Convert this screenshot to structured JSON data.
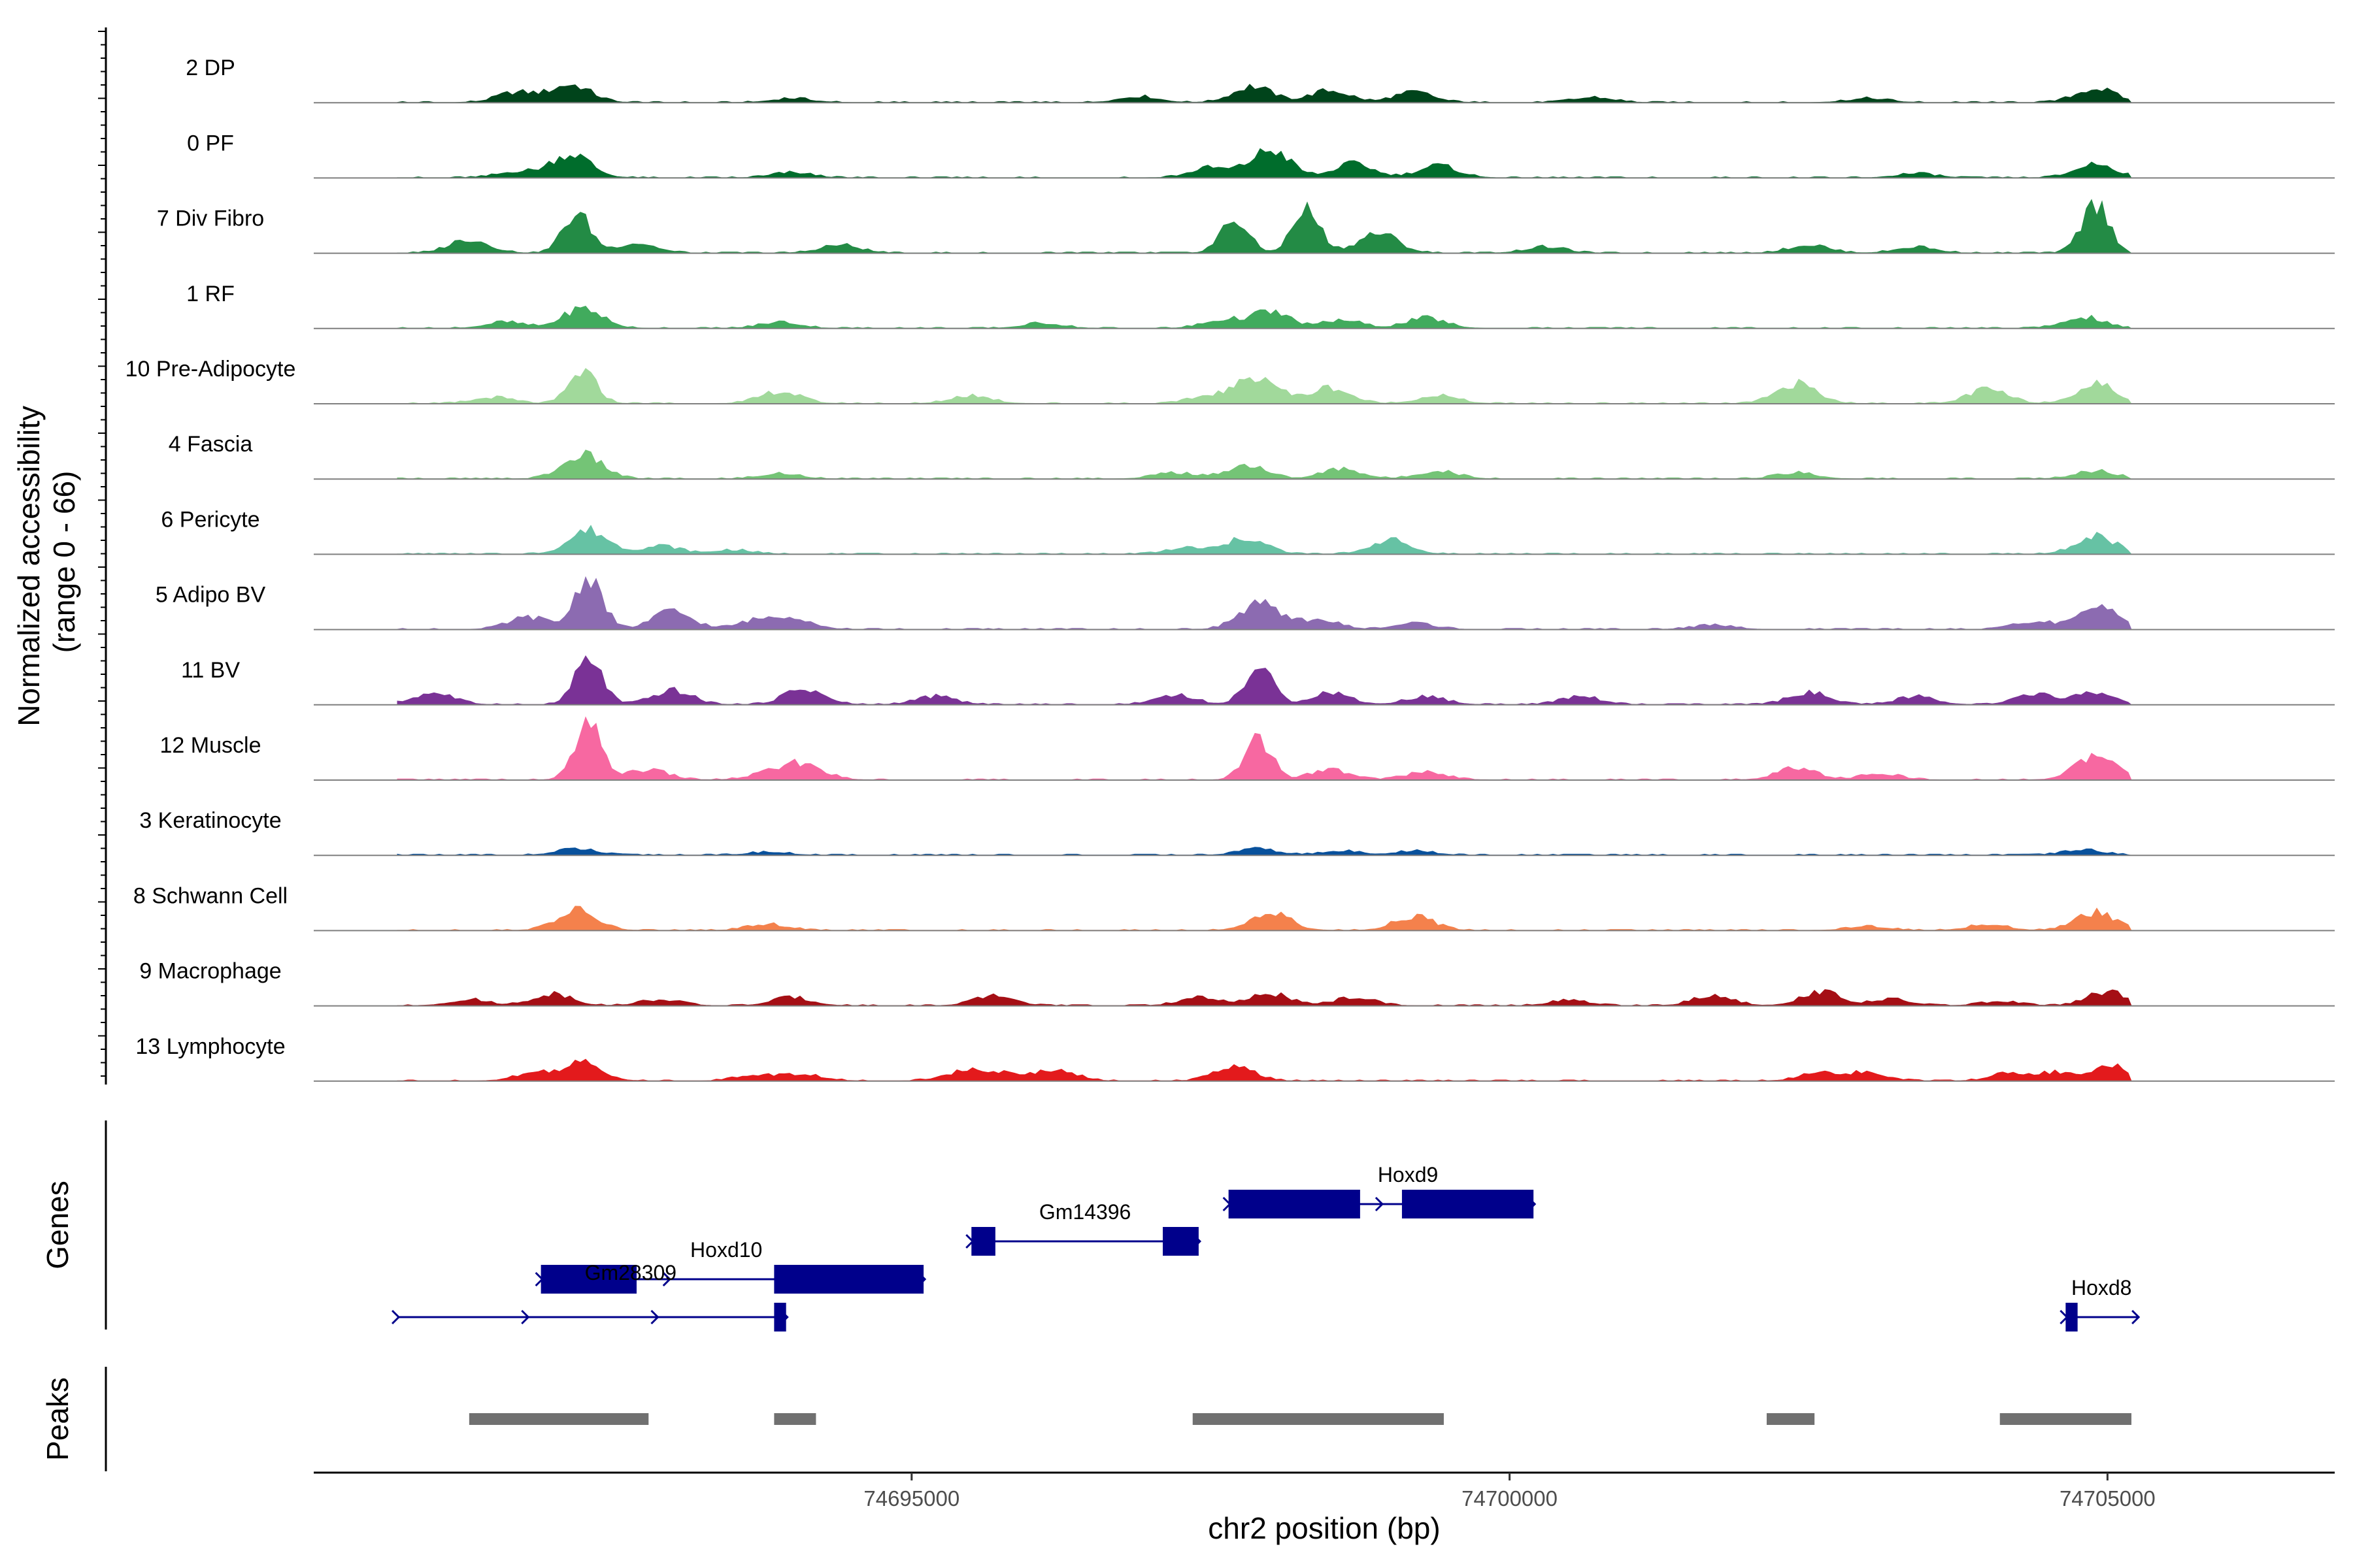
{
  "chart_data": {
    "type": "area",
    "title": "",
    "ylabel": "Normalized accessibility\n(range 0 - 66)",
    "y_range": [
      0,
      66
    ],
    "xlabel": "chr2 position (bp)",
    "x_range": [
      74690000,
      74706900
    ],
    "x_ticks": [
      74695000,
      74700000,
      74705000
    ],
    "x_tick_labels": [
      "74695000",
      "74700000",
      "74705000"
    ],
    "track_titles": {
      "genes": "Genes",
      "peaks": "Peaks"
    },
    "series": [
      {
        "name": "2 DP",
        "color": "#00441b",
        "peaks": [
          [
            74691700,
            10
          ],
          [
            74692150,
            18
          ],
          [
            74694000,
            4
          ],
          [
            74696900,
            6
          ],
          [
            74697850,
            16
          ],
          [
            74698500,
            12
          ],
          [
            74699200,
            10
          ],
          [
            74700700,
            5
          ],
          [
            74703000,
            4
          ],
          [
            74704900,
            14
          ]
        ]
      },
      {
        "name": "0 PF",
        "color": "#006d2c",
        "peaks": [
          [
            74691700,
            6
          ],
          [
            74692150,
            24
          ],
          [
            74694000,
            5
          ],
          [
            74697500,
            10
          ],
          [
            74698000,
            28
          ],
          [
            74698700,
            14
          ],
          [
            74699400,
            12
          ],
          [
            74703400,
            4
          ],
          [
            74704900,
            14
          ]
        ]
      },
      {
        "name": "7 Div Fibro",
        "color": "#238b45",
        "peaks": [
          [
            74691300,
            14
          ],
          [
            74692200,
            40
          ],
          [
            74692700,
            10
          ],
          [
            74694400,
            8
          ],
          [
            74697700,
            34
          ],
          [
            74698300,
            44
          ],
          [
            74698900,
            20
          ],
          [
            74700300,
            6
          ],
          [
            74702500,
            8
          ],
          [
            74703400,
            6
          ],
          [
            74704900,
            50
          ]
        ]
      },
      {
        "name": "1 RF",
        "color": "#41ab5d",
        "peaks": [
          [
            74691600,
            6
          ],
          [
            74692250,
            20
          ],
          [
            74693900,
            6
          ],
          [
            74696100,
            5
          ],
          [
            74697600,
            8
          ],
          [
            74698000,
            16
          ],
          [
            74698600,
            8
          ],
          [
            74699300,
            10
          ],
          [
            74704800,
            11
          ]
        ]
      },
      {
        "name": "10 Pre-Adipocyte",
        "color": "#a1d99b",
        "peaks": [
          [
            74691500,
            6
          ],
          [
            74692250,
            32
          ],
          [
            74693900,
            12
          ],
          [
            74695500,
            8
          ],
          [
            74697500,
            8
          ],
          [
            74697900,
            28
          ],
          [
            74698500,
            16
          ],
          [
            74699400,
            8
          ],
          [
            74702400,
            20
          ],
          [
            74704000,
            14
          ],
          [
            74704900,
            20
          ]
        ]
      },
      {
        "name": "4 Fascia",
        "color": "#74c476",
        "peaks": [
          [
            74692250,
            24
          ],
          [
            74693900,
            5
          ],
          [
            74697200,
            6
          ],
          [
            74697800,
            14
          ],
          [
            74698600,
            10
          ],
          [
            74699400,
            8
          ],
          [
            74702400,
            6
          ],
          [
            74704900,
            8
          ]
        ]
      },
      {
        "name": "6 Pericyte",
        "color": "#66c2a4",
        "peaks": [
          [
            74692300,
            24
          ],
          [
            74692900,
            8
          ],
          [
            74693500,
            4
          ],
          [
            74697300,
            6
          ],
          [
            74697800,
            16
          ],
          [
            74699000,
            14
          ],
          [
            74704900,
            18
          ]
        ]
      },
      {
        "name": "5 Adipo BV",
        "color": "#8c6bb1",
        "peaks": [
          [
            74691800,
            12
          ],
          [
            74692300,
            54
          ],
          [
            74693000,
            18
          ],
          [
            74693700,
            8
          ],
          [
            74694000,
            12
          ],
          [
            74697900,
            26
          ],
          [
            74698400,
            10
          ],
          [
            74699200,
            6
          ],
          [
            74701700,
            4
          ],
          [
            74704400,
            8
          ],
          [
            74704950,
            24
          ]
        ]
      },
      {
        "name": "11 BV",
        "color": "#7a3296",
        "peaks": [
          [
            74691000,
            12
          ],
          [
            74692300,
            46
          ],
          [
            74693000,
            14
          ],
          [
            74694100,
            16
          ],
          [
            74695200,
            8
          ],
          [
            74697200,
            10
          ],
          [
            74697900,
            38
          ],
          [
            74698500,
            12
          ],
          [
            74699300,
            8
          ],
          [
            74700600,
            8
          ],
          [
            74702500,
            12
          ],
          [
            74703400,
            8
          ],
          [
            74704400,
            10
          ],
          [
            74704900,
            12
          ]
        ]
      },
      {
        "name": "12 Muscle",
        "color": "#f768a1",
        "peaks": [
          [
            74692300,
            54
          ],
          [
            74692800,
            10
          ],
          [
            74693800,
            6
          ],
          [
            74694100,
            16
          ],
          [
            74697900,
            40
          ],
          [
            74698500,
            10
          ],
          [
            74699300,
            8
          ],
          [
            74702400,
            12
          ],
          [
            74703100,
            6
          ],
          [
            74704900,
            24
          ]
        ]
      },
      {
        "name": "3 Keratinocyte",
        "color": "#08519c",
        "peaks": [
          [
            74692200,
            6
          ],
          [
            74693800,
            3
          ],
          [
            74697900,
            6
          ],
          [
            74698600,
            4
          ],
          [
            74699200,
            4
          ],
          [
            74704800,
            5
          ]
        ]
      },
      {
        "name": "8 Schwann Cell",
        "color": "#f4814c",
        "peaks": [
          [
            74692200,
            20
          ],
          [
            74693800,
            6
          ],
          [
            74698000,
            18
          ],
          [
            74699200,
            14
          ],
          [
            74703000,
            4
          ],
          [
            74704000,
            6
          ],
          [
            74704900,
            18
          ]
        ]
      },
      {
        "name": "9 Macrophage",
        "color": "#a50f15",
        "peaks": [
          [
            74691300,
            6
          ],
          [
            74692000,
            12
          ],
          [
            74692900,
            6
          ],
          [
            74694000,
            8
          ],
          [
            74695700,
            10
          ],
          [
            74697400,
            8
          ],
          [
            74698000,
            12
          ],
          [
            74698700,
            8
          ],
          [
            74700500,
            5
          ],
          [
            74701700,
            10
          ],
          [
            74702600,
            14
          ],
          [
            74703200,
            6
          ],
          [
            74704100,
            4
          ],
          [
            74705000,
            14
          ]
        ]
      },
      {
        "name": "13 Lymphocyte",
        "color": "#e31a1c",
        "peaks": [
          [
            74691850,
            8
          ],
          [
            74692250,
            18
          ],
          [
            74693700,
            6
          ],
          [
            74694100,
            6
          ],
          [
            74695400,
            8
          ],
          [
            74695700,
            8
          ],
          [
            74696200,
            12
          ],
          [
            74697700,
            14
          ],
          [
            74702600,
            8
          ],
          [
            74703000,
            8
          ],
          [
            74704200,
            8
          ],
          [
            74704600,
            8
          ],
          [
            74705050,
            14
          ]
        ]
      }
    ],
    "genes": [
      {
        "name": "Hoxd9",
        "strand": "+",
        "row": 0,
        "start": 74697650,
        "end": 74700200,
        "exons": [
          [
            74697650,
            74698750
          ],
          [
            74699100,
            74700200
          ]
        ],
        "label_at": 74699150
      },
      {
        "name": "Gm14396",
        "strand": "+",
        "row": 1,
        "start": 74695500,
        "end": 74697400,
        "exons": [
          [
            74695500,
            74695700
          ],
          [
            74697100,
            74697400
          ]
        ],
        "label_at": 74696450
      },
      {
        "name": "Hoxd10",
        "strand": "+",
        "row": 2,
        "start": 74691900,
        "end": 74695100,
        "exons": [
          [
            74691900,
            74692700
          ],
          [
            74693850,
            74695100
          ]
        ],
        "label_at": 74693450
      },
      {
        "name": "Gm28309",
        "strand": "+",
        "row": 3,
        "start": 74690700,
        "end": 74693950,
        "exons": [
          [
            74693850,
            74693950
          ]
        ],
        "label_at": 74692650,
        "label_row": 2.6
      },
      {
        "name": "Hoxd8",
        "strand": "+",
        "row": 3,
        "start": 74704650,
        "end": 74705250,
        "exons": [
          [
            74704650,
            74704750
          ]
        ],
        "label_at": 74704950
      }
    ],
    "peaks": [
      [
        74691300,
        74692800
      ],
      [
        74693850,
        74694200
      ],
      [
        74697350,
        74699450
      ],
      [
        74702150,
        74702550
      ],
      [
        74704100,
        74705200
      ]
    ]
  }
}
